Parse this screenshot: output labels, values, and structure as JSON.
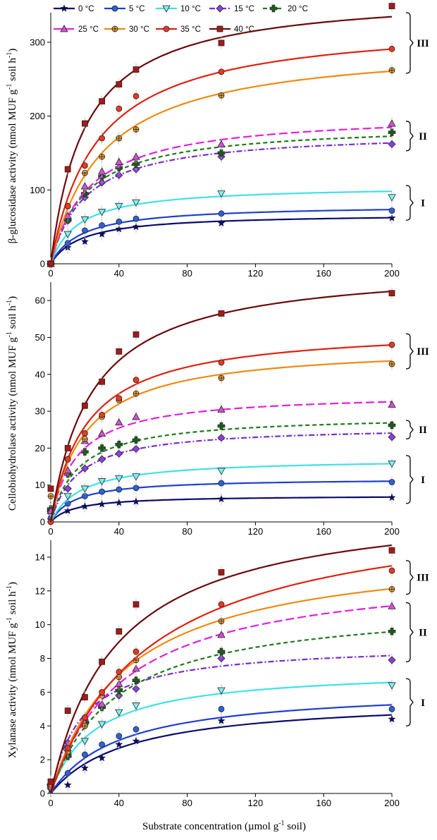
{
  "legend": {
    "row1": [
      {
        "label": "0 °C",
        "series": "0"
      },
      {
        "label": "5 °C",
        "series": "5"
      },
      {
        "label": "10 °C",
        "series": "10"
      },
      {
        "label": "15 °C",
        "series": "15"
      },
      {
        "label": "20 °C",
        "series": "20"
      }
    ],
    "row2": [
      {
        "label": "25 °C",
        "series": "25"
      },
      {
        "label": "30 °C",
        "series": "30"
      },
      {
        "label": "35 °C",
        "series": "35"
      },
      {
        "label": "40 °C",
        "series": "40"
      }
    ]
  },
  "series_style": {
    "0": {
      "color": "#0a0a6e",
      "marker": "star",
      "dash": "",
      "marker_fill": "#0a0a6e"
    },
    "5": {
      "color": "#1f3fd0",
      "marker": "circle",
      "dash": "",
      "marker_fill": "#2b63d6"
    },
    "10": {
      "color": "#40e0e8",
      "marker": "tri-down",
      "dash": "",
      "marker_fill": "#7ff0f2"
    },
    "15": {
      "color": "#7a2bd1",
      "marker": "diamond",
      "dash": "8,3,2,3",
      "marker_fill": "#8d3fe0"
    },
    "20": {
      "color": "#1e7a1e",
      "marker": "plus",
      "dash": "6,4",
      "marker_fill": "#1e5a1e"
    },
    "25": {
      "color": "#e020e0",
      "marker": "tri-up",
      "dash": "12,5",
      "marker_fill": "#d44fd4"
    },
    "30": {
      "color": "#f08a10",
      "marker": "circle-plus",
      "dash": "",
      "marker_fill": "#f0a030"
    },
    "35": {
      "color": "#e02010",
      "marker": "circle",
      "dash": "",
      "marker_fill": "#e83a20"
    },
    "40": {
      "color": "#6a0a0a",
      "marker": "square",
      "dash": "",
      "marker_fill": "#a81818"
    }
  },
  "chart_data": [
    {
      "type": "scatter",
      "title": "",
      "xlabel": "",
      "ylabel": "β-glucosidase activity (nmol MUF g-1 soil h-1)",
      "xlim": [
        0,
        200
      ],
      "ylim": [
        0,
        340
      ],
      "xticks": [
        0,
        40,
        80,
        120,
        160,
        200
      ],
      "xtick_labels": [
        "0",
        "40",
        "80",
        "120",
        "160",
        "200"
      ],
      "yticks": [
        0,
        100,
        200,
        300
      ],
      "ytick_labels": [
        "0",
        "100",
        "200",
        "300"
      ],
      "x": [
        0,
        10,
        20,
        30,
        40,
        50,
        100,
        200
      ],
      "series": [
        {
          "name": "0 °C",
          "values": [
            0,
            22,
            30,
            40,
            47,
            50,
            55,
            62
          ],
          "vmax": 68,
          "km": 18
        },
        {
          "name": "5 °C",
          "values": [
            0,
            28,
            45,
            52,
            57,
            61,
            68,
            72
          ],
          "vmax": 80,
          "km": 18
        },
        {
          "name": "10 °C",
          "values": [
            0,
            40,
            60,
            70,
            78,
            83,
            95,
            90
          ],
          "vmax": 106,
          "km": 16
        },
        {
          "name": "15 °C",
          "values": [
            0,
            58,
            90,
            110,
            120,
            128,
            145,
            162
          ],
          "vmax": 180,
          "km": 20
        },
        {
          "name": "20 °C",
          "values": [
            0,
            60,
            95,
            118,
            130,
            135,
            150,
            178
          ],
          "vmax": 190,
          "km": 20
        },
        {
          "name": "25 °C",
          "values": [
            0,
            65,
            105,
            125,
            138,
            145,
            162,
            190
          ],
          "vmax": 205,
          "km": 22
        },
        {
          "name": "30 °C",
          "values": [
            0,
            78,
            123,
            145,
            170,
            182,
            228,
            262
          ],
          "vmax": 300,
          "km": 30
        },
        {
          "name": "35 °C",
          "values": [
            0,
            78,
            133,
            170,
            210,
            227,
            260,
            291
          ],
          "vmax": 330,
          "km": 27
        },
        {
          "name": "40 °C",
          "values": [
            0,
            128,
            190,
            220,
            243,
            263,
            299,
            349
          ],
          "vmax": 368,
          "km": 20
        }
      ],
      "groups": [
        {
          "label": "I",
          "range": [
            59,
            106
          ]
        },
        {
          "label": "II",
          "range": [
            153,
            193
          ]
        },
        {
          "label": "III",
          "range": [
            258,
            340
          ]
        }
      ]
    },
    {
      "type": "scatter",
      "title": "",
      "xlabel": "",
      "ylabel": "Cellobiohydrolase activity (nmol MUF g-1 soil h-1)",
      "xlim": [
        0,
        200
      ],
      "ylim": [
        0,
        65
      ],
      "xticks": [
        0,
        40,
        80,
        120,
        160,
        200
      ],
      "xtick_labels": [
        "0",
        "40",
        "80",
        "120",
        "160",
        "200"
      ],
      "yticks": [
        0,
        10,
        20,
        30,
        40,
        50,
        60
      ],
      "ytick_labels": [
        "0",
        "10",
        "20",
        "30",
        "40",
        "50",
        "60"
      ],
      "x": [
        0,
        10,
        20,
        30,
        40,
        50,
        100,
        200
      ],
      "series": [
        {
          "name": "0 °C",
          "values": [
            0.5,
            3,
            4.2,
            4.8,
            5.2,
            5.5,
            6.2,
            6.6
          ],
          "vmax": 7.2,
          "km": 14
        },
        {
          "name": "5 °C",
          "values": [
            1,
            5,
            7,
            8.2,
            8.8,
            9.2,
            10.5,
            10.8
          ],
          "vmax": 11.8,
          "km": 14
        },
        {
          "name": "10 °C",
          "values": [
            2,
            7,
            9,
            11,
            11.8,
            12.3,
            13.8,
            15.8
          ],
          "vmax": 17.2,
          "km": 18
        },
        {
          "name": "15 °C",
          "values": [
            3,
            9,
            14.5,
            17,
            18.5,
            19.8,
            22.8,
            23
          ],
          "vmax": 26,
          "km": 16
        },
        {
          "name": "20 °C",
          "values": [
            3.5,
            13,
            19,
            20,
            21,
            22.2,
            26,
            26.2
          ],
          "vmax": 29,
          "km": 16
        },
        {
          "name": "25 °C",
          "values": [
            3,
            14,
            22,
            24,
            27,
            28.5,
            30.5,
            31.8
          ],
          "vmax": 35,
          "km": 15
        },
        {
          "name": "30 °C",
          "values": [
            7,
            17,
            22.5,
            28.5,
            33,
            34.8,
            39,
            42.8
          ],
          "vmax": 48,
          "km": 20
        },
        {
          "name": "35 °C",
          "values": [
            0,
            17,
            24,
            29,
            33.5,
            38.5,
            43.2,
            48
          ],
          "vmax": 53,
          "km": 21
        },
        {
          "name": "40 °C",
          "values": [
            9,
            20,
            31.5,
            38,
            46.2,
            50.8,
            56.5,
            62
          ],
          "vmax": 70,
          "km": 24
        }
      ],
      "groups": [
        {
          "label": "I",
          "range": [
            5,
            18
          ]
        },
        {
          "label": "II",
          "range": [
            22.5,
            27.5
          ]
        },
        {
          "label": "III",
          "range": [
            41.5,
            51
          ]
        }
      ]
    },
    {
      "type": "scatter",
      "title": "",
      "xlabel": "Substrate concentration (µmol g-1 soil)",
      "ylabel": "Xylanase activity (nmol MUF g-1 soil h-1)",
      "xlim": [
        0,
        200
      ],
      "ylim": [
        0,
        15
      ],
      "xticks": [
        0,
        40,
        80,
        120,
        160,
        200
      ],
      "xtick_labels": [
        "0",
        "40",
        "80",
        "120",
        "160",
        "200"
      ],
      "yticks": [
        0,
        2,
        4,
        6,
        8,
        10,
        12,
        14
      ],
      "ytick_labels": [
        "0",
        "2",
        "4",
        "6",
        "8",
        "10",
        "12",
        "14"
      ],
      "x": [
        0,
        10,
        20,
        30,
        40,
        50,
        100,
        200
      ],
      "series": [
        {
          "name": "0 °C",
          "values": [
            0.2,
            0.5,
            1.5,
            2.1,
            2.9,
            3.1,
            4.3,
            4.4
          ],
          "vmax": 5.7,
          "km": 45
        },
        {
          "name": "5 °C",
          "values": [
            0.3,
            1.2,
            2.3,
            2.9,
            3.4,
            3.8,
            5.0,
            5.0
          ],
          "vmax": 6.3,
          "km": 40
        },
        {
          "name": "10 °C",
          "values": [
            0.4,
            2.4,
            3.1,
            4.1,
            4.8,
            5.2,
            6.1,
            6.4
          ],
          "vmax": 7.4,
          "km": 25
        },
        {
          "name": "15 °C",
          "values": [
            0.5,
            3.0,
            4.1,
            5.2,
            5.8,
            6.2,
            8.0,
            7.9
          ],
          "vmax": 8.9,
          "km": 18
        },
        {
          "name": "20 °C",
          "values": [
            0.5,
            2.2,
            4.2,
            5.1,
            6.1,
            6.7,
            8.4,
            9.6
          ],
          "vmax": 11.4,
          "km": 38
        },
        {
          "name": "25 °C",
          "values": [
            0.5,
            2.5,
            4.5,
            5.3,
            6.5,
            7.4,
            9.4,
            11.1
          ],
          "vmax": 13.5,
          "km": 43
        },
        {
          "name": "30 °C",
          "values": [
            0.4,
            2.5,
            4.0,
            5.8,
            6.9,
            7.9,
            10.2,
            12.1
          ],
          "vmax": 14.8,
          "km": 44
        },
        {
          "name": "35 °C",
          "values": [
            0.5,
            2.7,
            4.5,
            6.0,
            7.2,
            8.4,
            11.2,
            13.2
          ],
          "vmax": 17.4,
          "km": 58
        },
        {
          "name": "40 °C",
          "values": [
            0.7,
            4.9,
            5.7,
            7.8,
            9.6,
            11.2,
            13.1,
            14.4
          ],
          "vmax": 17.5,
          "km": 38
        }
      ],
      "groups": [
        {
          "label": "I",
          "range": [
            4.0,
            6.8
          ]
        },
        {
          "label": "II",
          "range": [
            7.8,
            11.3
          ]
        },
        {
          "label": "III",
          "range": [
            11.8,
            13.8
          ]
        }
      ]
    }
  ]
}
